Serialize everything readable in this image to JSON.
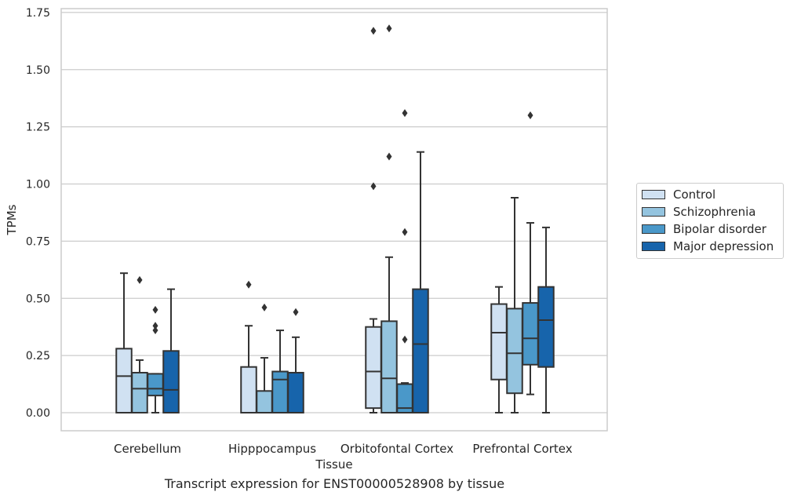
{
  "chart_data": {
    "type": "box",
    "title": "",
    "caption": "Transcript expression for ENST00000528908 by tissue",
    "xlabel": "Tissue",
    "ylabel": "TPMs",
    "ylim": [
      -0.08,
      1.76
    ],
    "yticks": [
      0.0,
      0.25,
      0.5,
      0.75,
      1.0,
      1.25,
      1.5,
      1.75
    ],
    "ytick_labels": [
      "0.00",
      "0.25",
      "0.50",
      "0.75",
      "1.00",
      "1.25",
      "1.50",
      "1.75"
    ],
    "grid": "horizontal",
    "legend_position": "outside right",
    "categories": [
      "Cerebellum",
      "Hipppocampus",
      "Orbitofontal Cortex",
      "Prefrontal Cortex"
    ],
    "series": [
      {
        "name": "Control",
        "color": "#d0e1f2",
        "boxes": [
          {
            "q1": 0.0,
            "median": 0.16,
            "q3": 0.28,
            "whisker_low": 0.0,
            "whisker_high": 0.61,
            "outliers": []
          },
          {
            "q1": 0.0,
            "median": 0.0,
            "q3": 0.2,
            "whisker_low": 0.0,
            "whisker_high": 0.38,
            "outliers": [
              0.56
            ]
          },
          {
            "q1": 0.02,
            "median": 0.18,
            "q3": 0.375,
            "whisker_low": 0.0,
            "whisker_high": 0.41,
            "outliers": [
              0.99,
              1.67
            ]
          },
          {
            "q1": 0.145,
            "median": 0.35,
            "q3": 0.475,
            "whisker_low": 0.0,
            "whisker_high": 0.55,
            "outliers": []
          }
        ]
      },
      {
        "name": "Schizophrenia",
        "color": "#94c4df",
        "boxes": [
          {
            "q1": 0.0,
            "median": 0.105,
            "q3": 0.175,
            "whisker_low": 0.0,
            "whisker_high": 0.23,
            "outliers": [
              0.58
            ]
          },
          {
            "q1": 0.0,
            "median": 0.0,
            "q3": 0.095,
            "whisker_low": 0.0,
            "whisker_high": 0.24,
            "outliers": [
              0.46
            ]
          },
          {
            "q1": 0.0,
            "median": 0.15,
            "q3": 0.4,
            "whisker_low": 0.0,
            "whisker_high": 0.68,
            "outliers": [
              1.12,
              1.68
            ]
          },
          {
            "q1": 0.085,
            "median": 0.26,
            "q3": 0.455,
            "whisker_low": 0.0,
            "whisker_high": 0.94,
            "outliers": []
          }
        ]
      },
      {
        "name": "Bipolar disorder",
        "color": "#4a98c9",
        "boxes": [
          {
            "q1": 0.075,
            "median": 0.105,
            "q3": 0.17,
            "whisker_low": 0.0,
            "whisker_high": 0.17,
            "outliers": [
              0.36,
              0.38,
              0.45
            ]
          },
          {
            "q1": 0.0,
            "median": 0.145,
            "q3": 0.18,
            "whisker_low": 0.0,
            "whisker_high": 0.36,
            "outliers": []
          },
          {
            "q1": 0.0,
            "median": 0.02,
            "q3": 0.125,
            "whisker_low": 0.0,
            "whisker_high": 0.13,
            "outliers": [
              0.32,
              0.79,
              1.31
            ]
          },
          {
            "q1": 0.21,
            "median": 0.325,
            "q3": 0.48,
            "whisker_low": 0.08,
            "whisker_high": 0.83,
            "outliers": [
              1.3
            ]
          }
        ]
      },
      {
        "name": "Major depression",
        "color": "#1764ab",
        "boxes": [
          {
            "q1": 0.0,
            "median": 0.1,
            "q3": 0.27,
            "whisker_low": 0.0,
            "whisker_high": 0.54,
            "outliers": []
          },
          {
            "q1": 0.0,
            "median": 0.0,
            "q3": 0.175,
            "whisker_low": 0.0,
            "whisker_high": 0.33,
            "outliers": [
              0.44
            ]
          },
          {
            "q1": 0.0,
            "median": 0.3,
            "q3": 0.54,
            "whisker_low": 0.0,
            "whisker_high": 1.14,
            "outliers": []
          },
          {
            "q1": 0.2,
            "median": 0.405,
            "q3": 0.55,
            "whisker_low": 0.0,
            "whisker_high": 0.81,
            "outliers": []
          }
        ]
      }
    ]
  }
}
